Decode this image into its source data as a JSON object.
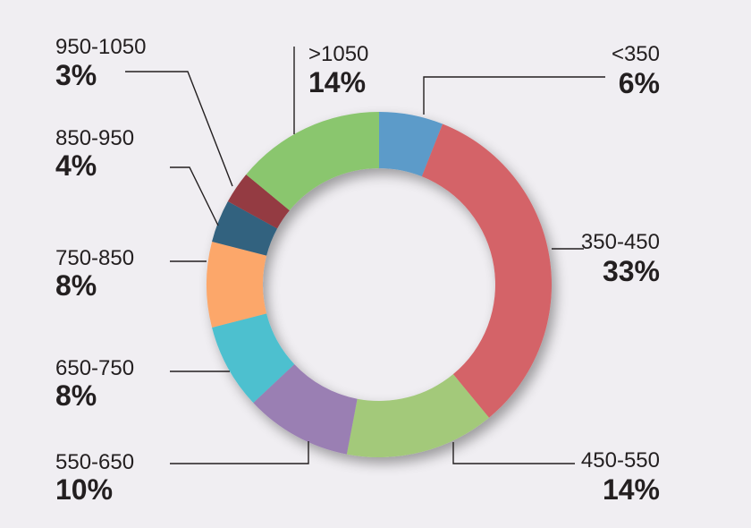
{
  "chart_data": {
    "type": "pie",
    "donut": true,
    "categories": [
      "<350",
      "350-450",
      "450-550",
      "550-650",
      "650-750",
      "750-850",
      "850-950",
      "950-1050",
      ">1050"
    ],
    "values": [
      6,
      33,
      14,
      10,
      8,
      8,
      4,
      3,
      14
    ],
    "labels": [
      "6%",
      "33%",
      "14%",
      "10%",
      "8%",
      "8%",
      "4%",
      "3%",
      "14%"
    ],
    "colors": [
      "#5b9bc9",
      "#d46468",
      "#a3c97a",
      "#9a7fb3",
      "#4dc0cf",
      "#fca76b",
      "#33627f",
      "#943b42",
      "#8ac66e"
    ],
    "legend": "none"
  }
}
